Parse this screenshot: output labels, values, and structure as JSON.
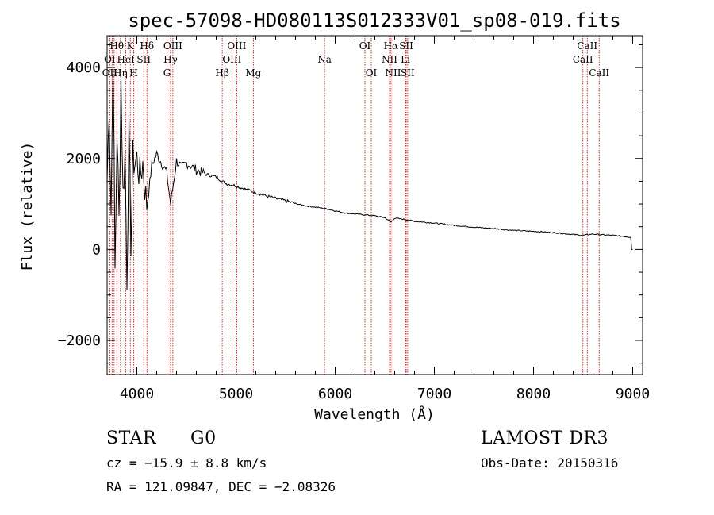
{
  "chart_data": {
    "type": "line",
    "title": "spec-57098-HD080113S012333V01_sp08-019.fits",
    "xlabel": "Wavelength (Å)",
    "ylabel": "Flux (relative)",
    "xlim": [
      3700,
      9100
    ],
    "ylim": [
      -2750,
      4700
    ],
    "x_ticks": [
      4000,
      5000,
      6000,
      7000,
      8000,
      9000
    ],
    "y_ticks": [
      -2000,
      0,
      2000,
      4000
    ],
    "x_tick_labels": [
      "4000",
      "5000",
      "6000",
      "7000",
      "8000",
      "9000"
    ],
    "y_tick_labels": [
      "−2000",
      "0",
      "2000",
      "4000"
    ],
    "series": [
      {
        "name": "spectrum",
        "x": [
          3700,
          3720,
          3740,
          3760,
          3780,
          3800,
          3820,
          3840,
          3860,
          3880,
          3900,
          3920,
          3940,
          3960,
          3980,
          4000,
          4030,
          4060,
          4100,
          4150,
          4200,
          4250,
          4300,
          4340,
          4400,
          4450,
          4500,
          4600,
          4700,
          4800,
          4860,
          4900,
          5000,
          5100,
          5200,
          5300,
          5400,
          5500,
          5600,
          5700,
          5800,
          5900,
          6000,
          6100,
          6200,
          6300,
          6400,
          6500,
          6563,
          6600,
          6700,
          6800,
          7000,
          7200,
          7400,
          7600,
          7800,
          8000,
          8200,
          8400,
          8500,
          8600,
          8700,
          8800,
          8900,
          8980,
          8990,
          9000
        ],
        "y": [
          1500,
          3200,
          800,
          4400,
          -500,
          2600,
          600,
          3800,
          1200,
          2100,
          -600,
          2500,
          200,
          2000,
          1900,
          2000,
          1600,
          1900,
          900,
          1850,
          2100,
          1900,
          1700,
          1000,
          1950,
          1800,
          1900,
          1750,
          1650,
          1600,
          1500,
          1450,
          1400,
          1320,
          1250,
          1180,
          1120,
          1070,
          1010,
          960,
          930,
          900,
          850,
          800,
          780,
          760,
          740,
          700,
          600,
          690,
          660,
          620,
          580,
          530,
          490,
          460,
          420,
          400,
          370,
          330,
          310,
          340,
          320,
          310,
          290,
          270,
          0,
          0
        ]
      }
    ],
    "line_labels": [
      {
        "label": "Hθ",
        "wavelength": 3798,
        "row": 1
      },
      {
        "label": "OI",
        "wavelength": 3727,
        "row": 2
      },
      {
        "label": "OII",
        "wavelength": 3727,
        "row": 3
      },
      {
        "label": "K",
        "wavelength": 3934,
        "row": 1
      },
      {
        "label": "HeI",
        "wavelength": 3889,
        "row": 2
      },
      {
        "label": "Hη",
        "wavelength": 3835,
        "row": 3
      },
      {
        "label": "Hδ",
        "wavelength": 4102,
        "row": 1
      },
      {
        "label": "SII",
        "wavelength": 4070,
        "row": 2
      },
      {
        "label": "H",
        "wavelength": 3969,
        "row": 3
      },
      {
        "label": "OIII",
        "wavelength": 4363,
        "row": 1
      },
      {
        "label": "Hγ",
        "wavelength": 4340,
        "row": 2
      },
      {
        "label": "G",
        "wavelength": 4304,
        "row": 3
      },
      {
        "label": "OIII",
        "wavelength": 5007,
        "row": 1
      },
      {
        "label": "OIII",
        "wavelength": 4959,
        "row": 2
      },
      {
        "label": "Hβ",
        "wavelength": 4861,
        "row": 3
      },
      {
        "label": "Mg",
        "wavelength": 5175,
        "row": 3
      },
      {
        "label": "Na",
        "wavelength": 5893,
        "row": 2
      },
      {
        "label": "OI",
        "wavelength": 6300,
        "row": 1
      },
      {
        "label": "OI",
        "wavelength": 6364,
        "row": 3
      },
      {
        "label": "Hα",
        "wavelength": 6563,
        "row": 1
      },
      {
        "label": "SII",
        "wavelength": 6716,
        "row": 1
      },
      {
        "label": "NII",
        "wavelength": 6548,
        "row": 2
      },
      {
        "label": "Li",
        "wavelength": 6708,
        "row": 2
      },
      {
        "label": "NII",
        "wavelength": 6584,
        "row": 3
      },
      {
        "label": "SII",
        "wavelength": 6731,
        "row": 3
      },
      {
        "label": "CaII",
        "wavelength": 8542,
        "row": 1
      },
      {
        "label": "CaII",
        "wavelength": 8498,
        "row": 2
      },
      {
        "label": "CaII",
        "wavelength": 8662,
        "row": 3
      }
    ],
    "line_positions": [
      3727,
      3750,
      3771,
      3798,
      3835,
      3889,
      3934,
      3969,
      4070,
      4102,
      4304,
      4340,
      4363,
      4861,
      4959,
      5007,
      5175,
      5893,
      6300,
      6364,
      6548,
      6563,
      6584,
      6708,
      6716,
      6731,
      8498,
      8542,
      8662
    ],
    "colors": {
      "spectrum": "#000000",
      "lines": "#c00000",
      "axes": "#000000"
    }
  },
  "info": {
    "object_class": "STAR",
    "subclass": "G0",
    "survey": "LAMOST DR3",
    "redshift": "cz = −15.9 ± 8.8 km/s",
    "obs_date": "Obs-Date: 20150316",
    "coords": "RA = 121.09847, DEC =  −2.08326"
  }
}
